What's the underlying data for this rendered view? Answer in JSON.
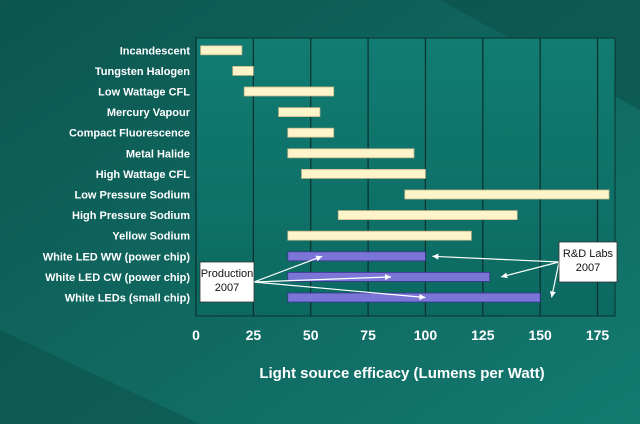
{
  "chart_data": {
    "type": "bar",
    "subtype": "floating-range",
    "orientation": "horizontal",
    "title": "",
    "xlabel": "Light source efficacy (Lumens per Watt)",
    "ylabel": "",
    "xlim": [
      0,
      180
    ],
    "xticks": [
      0,
      25,
      50,
      75,
      100,
      125,
      150,
      175
    ],
    "grid": "vertical",
    "categories": [
      "Incandescent",
      "Tungsten Halogen",
      "Low Wattage CFL",
      "Mercury Vapour",
      "Compact Fluorescence",
      "Metal Halide",
      "High Wattage CFL",
      "Low Pressure Sodium",
      "High Pressure Sodium",
      "Yellow Sodium",
      "White LED WW (power chip)",
      "White LED CW (power chip)",
      "White LEDs (small chip)"
    ],
    "ranges": [
      [
        2,
        20
      ],
      [
        16,
        25
      ],
      [
        21,
        60
      ],
      [
        36,
        54
      ],
      [
        40,
        60
      ],
      [
        40,
        95
      ],
      [
        46,
        100
      ],
      [
        91,
        180
      ],
      [
        62,
        140
      ],
      [
        40,
        120
      ],
      [
        40,
        100
      ],
      [
        40,
        128
      ],
      [
        40,
        150
      ]
    ],
    "series_colors": {
      "conventional": "#fdf4c9",
      "led": "#7b75d8"
    },
    "led_categories": [
      "White LED WW (power chip)",
      "White LED CW (power chip)",
      "White LEDs (small chip)"
    ],
    "annotations": [
      {
        "text": [
          "Production",
          "2007"
        ],
        "points_to": [
          [
            55,
            "White LED WW (power chip)"
          ],
          [
            85,
            "White LED CW (power chip)"
          ],
          [
            100,
            "White LEDs (small chip)"
          ]
        ]
      },
      {
        "text": [
          "R&D Labs",
          "2007"
        ],
        "points_to": [
          [
            103,
            "White LED WW (power chip)"
          ],
          [
            133,
            "White LED CW (power chip)"
          ],
          [
            155,
            "White LEDs (small chip)"
          ]
        ]
      }
    ]
  },
  "colors": {
    "background": "#0f5f5a",
    "plot_background": "#107870",
    "gridline": "#0a2f2c",
    "text": "#ffffff"
  }
}
